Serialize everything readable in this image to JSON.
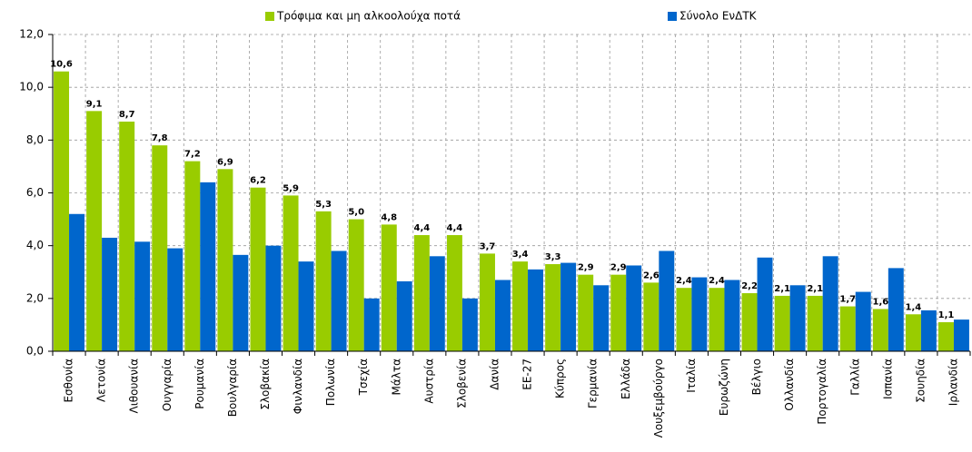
{
  "chart_data": {
    "type": "bar",
    "categories": [
      "Εσθονία",
      "Λετονία",
      "Λιθουανία",
      "Ουγγαρία",
      "Ρουμανία",
      "Βουλγαρία",
      "Σλοβακία",
      "Φινλανδία",
      "Πολωνία",
      "Τσεχία",
      "Μάλτα",
      "Αυστρία",
      "Σλοβενία",
      "Δανία",
      "ΕΕ-27",
      "Κύπρος",
      "Γερμανία",
      "Ελλάδα",
      "Λουξεμβούργο",
      "Ιταλία",
      "Ευρωζώνη",
      "Βέλγιο",
      "Ολλανδία",
      "Πορτογαλία",
      "Γαλλία",
      "Ισπανία",
      "Σουηδία",
      "Ιρλανδία"
    ],
    "series": [
      {
        "name": "Τρόφιμα και μη αλκοολούχα ποτά",
        "color": "#99cc00",
        "values": [
          10.6,
          9.1,
          8.7,
          7.8,
          7.2,
          6.9,
          6.2,
          5.9,
          5.3,
          5.0,
          4.8,
          4.4,
          4.4,
          3.7,
          3.4,
          3.3,
          2.9,
          2.9,
          2.6,
          2.4,
          2.4,
          2.2,
          2.1,
          2.1,
          1.7,
          1.6,
          1.4,
          1.1
        ],
        "value_labels": [
          "10,6",
          "9,1",
          "8,7",
          "7,8",
          "7,2",
          "6,9",
          "6,2",
          "5,9",
          "5,3",
          "5,0",
          "4,8",
          "4,4",
          "4,4",
          "3,7",
          "3,4",
          "3,3",
          "2,9",
          "2,9",
          "2,6",
          "2,4",
          "2,4",
          "2,2",
          "2,1",
          "2,1",
          "1,7",
          "1,6",
          "1,4",
          "1,1"
        ]
      },
      {
        "name": "Σύνολο ΕνΔΤΚ",
        "color": "#0066cc",
        "values": [
          5.2,
          4.3,
          4.15,
          3.9,
          6.4,
          3.65,
          4.0,
          3.4,
          3.8,
          2.0,
          2.65,
          3.6,
          2.0,
          2.7,
          3.1,
          3.35,
          2.5,
          3.25,
          3.8,
          2.8,
          2.7,
          3.55,
          2.5,
          3.6,
          2.25,
          3.15,
          1.55,
          1.2
        ]
      }
    ],
    "ylim": [
      0,
      12
    ],
    "yticks": [
      {
        "value": 0,
        "label": "0,0"
      },
      {
        "value": 2,
        "label": "2,0"
      },
      {
        "value": 4,
        "label": "4,0"
      },
      {
        "value": 6,
        "label": "6,0"
      },
      {
        "value": 8,
        "label": "8,0"
      },
      {
        "value": 10,
        "label": "10,0"
      },
      {
        "value": 12,
        "label": "12,0"
      }
    ],
    "grid": true,
    "legend": "top"
  }
}
